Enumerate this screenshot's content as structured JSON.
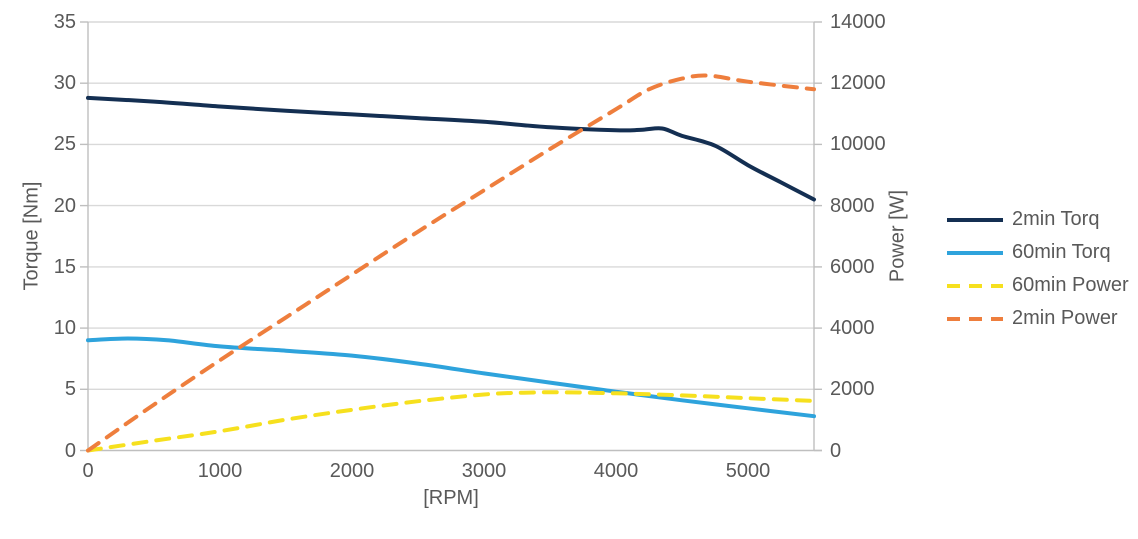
{
  "chart_data": {
    "type": "line",
    "title": "",
    "x_axis": {
      "title": "[RPM]",
      "min": 0,
      "max": 5500,
      "ticks": [
        0,
        1000,
        2000,
        3000,
        4000,
        5000
      ]
    },
    "left_axis": {
      "title": "Torque [Nm]",
      "min": 0,
      "max": 35,
      "ticks": [
        0,
        5,
        10,
        15,
        20,
        25,
        30,
        35
      ]
    },
    "right_axis": {
      "title": "Power [W]",
      "min": 0,
      "max": 14000,
      "ticks": [
        0,
        2000,
        4000,
        6000,
        8000,
        10000,
        12000,
        14000
      ]
    },
    "grid": "horizontal-only",
    "legend_position": "right",
    "colors": {
      "grid": "#d9d9d9",
      "axis": "#bfbfbf",
      "text": "#595959"
    },
    "series": [
      {
        "name": "2min Torq",
        "axis": "left",
        "style": "solid",
        "color": "#142f52",
        "points": [
          [
            0,
            28.8
          ],
          [
            500,
            28.5
          ],
          [
            1000,
            28.1
          ],
          [
            1500,
            27.75
          ],
          [
            2000,
            27.45
          ],
          [
            2500,
            27.15
          ],
          [
            3000,
            26.85
          ],
          [
            3500,
            26.4
          ],
          [
            4000,
            26.15
          ],
          [
            4200,
            26.2
          ],
          [
            4350,
            26.3
          ],
          [
            4500,
            25.7
          ],
          [
            4750,
            24.9
          ],
          [
            5000,
            23.3
          ],
          [
            5250,
            21.9
          ],
          [
            5500,
            20.5
          ]
        ]
      },
      {
        "name": "60min Torq",
        "axis": "left",
        "style": "solid",
        "color": "#2ea3dc",
        "points": [
          [
            0,
            9.0
          ],
          [
            300,
            9.15
          ],
          [
            600,
            9.0
          ],
          [
            1000,
            8.5
          ],
          [
            1500,
            8.15
          ],
          [
            2000,
            7.75
          ],
          [
            2500,
            7.1
          ],
          [
            3000,
            6.3
          ],
          [
            3500,
            5.55
          ],
          [
            4000,
            4.8
          ],
          [
            4500,
            4.1
          ],
          [
            5000,
            3.45
          ],
          [
            5500,
            2.8
          ]
        ]
      },
      {
        "name": "60min Power",
        "axis": "right",
        "style": "dashed",
        "color": "#f6e01e",
        "points": [
          [
            0,
            0
          ],
          [
            500,
            320
          ],
          [
            1000,
            630
          ],
          [
            1500,
            1010
          ],
          [
            2000,
            1330
          ],
          [
            2500,
            1610
          ],
          [
            3000,
            1830
          ],
          [
            3300,
            1890
          ],
          [
            3600,
            1900
          ],
          [
            4000,
            1870
          ],
          [
            4500,
            1800
          ],
          [
            5000,
            1710
          ],
          [
            5500,
            1620
          ]
        ]
      },
      {
        "name": "2min Power",
        "axis": "right",
        "style": "dashed",
        "color": "#ee7e3d",
        "points": [
          [
            0,
            0
          ],
          [
            500,
            1500
          ],
          [
            1000,
            2950
          ],
          [
            1500,
            4350
          ],
          [
            2000,
            5750
          ],
          [
            2500,
            7150
          ],
          [
            3000,
            8500
          ],
          [
            3500,
            9850
          ],
          [
            4000,
            11150
          ],
          [
            4250,
            11800
          ],
          [
            4500,
            12150
          ],
          [
            4700,
            12250
          ],
          [
            5000,
            12050
          ],
          [
            5500,
            11800
          ]
        ]
      }
    ]
  }
}
